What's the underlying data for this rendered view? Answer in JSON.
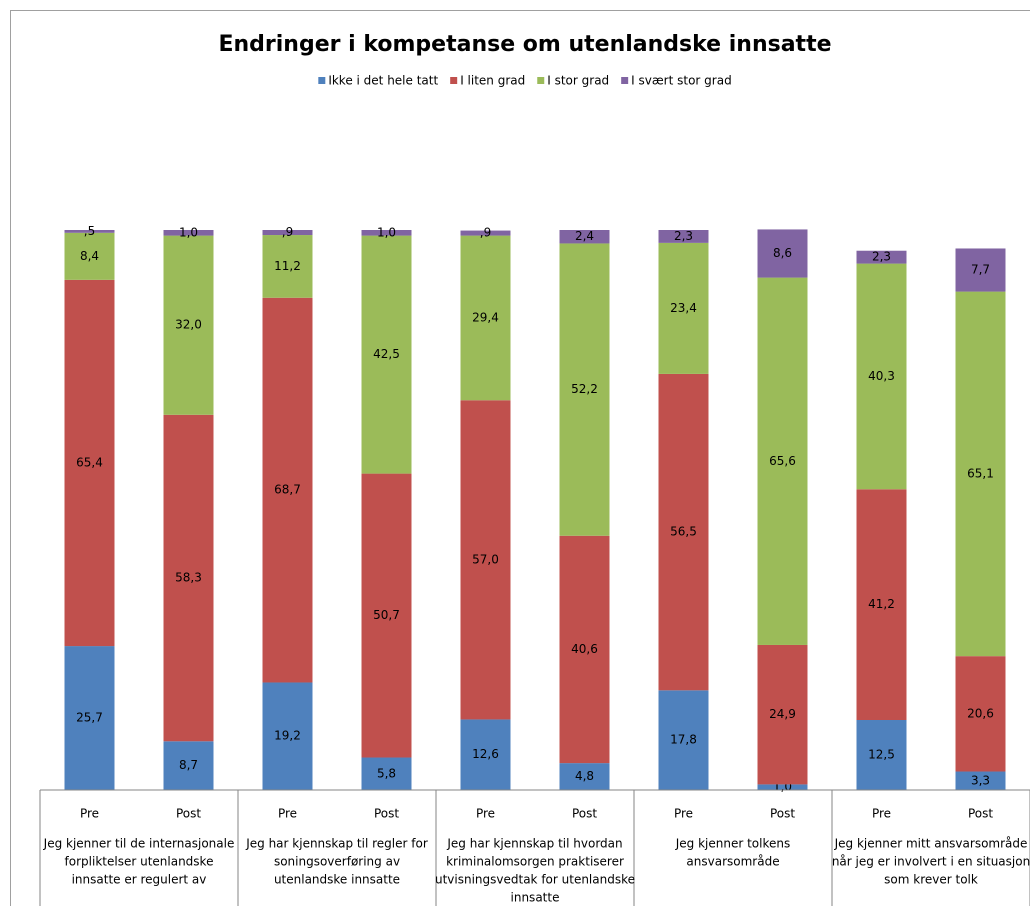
{
  "chart_data": {
    "type": "stacked_bar",
    "title": "Endringer i kompetanse om utenlandske innsatte",
    "categories": [
      "Pre",
      "Post",
      "Pre",
      "Post",
      "Pre",
      "Post",
      "Pre",
      "Post",
      "Pre",
      "Post"
    ],
    "group_labels": [
      [
        "Jeg kjenner til de internasjonale",
        "forpliktelser utenlandske",
        "innsatte er regulert av"
      ],
      [
        "Jeg har kjennskap til regler for",
        "soningsoverføring av",
        "utenlandske innsatte"
      ],
      [
        "Jeg har kjennskap til hvordan",
        "kriminalomsorgen praktiserer",
        "utvisningsvedtak for utenlandske",
        "innsatte"
      ],
      [
        "Jeg kjenner tolkens",
        "ansvarsområde"
      ],
      [
        "Jeg kjenner mitt ansvarsområde",
        "når jeg er involvert i en  situasjon",
        "som krever tolk"
      ]
    ],
    "ylim": [
      0,
      100
    ],
    "legend": "top",
    "series": [
      {
        "name": "Ikke i det hele tatt",
        "color": "#4f81bd",
        "values": [
          25.7,
          8.7,
          19.2,
          5.8,
          12.6,
          4.8,
          17.8,
          1.0,
          12.5,
          3.3
        ],
        "value_labels": [
          "25,7",
          "8,7",
          "19,2",
          "5,8",
          "12,6",
          "4,8",
          "17,8",
          "1,0",
          "12,5",
          "3,3"
        ]
      },
      {
        "name": "I liten grad",
        "color": "#c0504d",
        "values": [
          65.4,
          58.3,
          68.7,
          50.7,
          57.0,
          40.6,
          56.5,
          24.9,
          41.2,
          20.6
        ],
        "value_labels": [
          "65,4",
          "58,3",
          "68,7",
          "50,7",
          "57,0",
          "40,6",
          "56,5",
          "24,9",
          "41,2",
          "20,6"
        ]
      },
      {
        "name": "I stor grad",
        "color": "#9bbb59",
        "values": [
          8.4,
          32.0,
          11.2,
          42.5,
          29.4,
          52.2,
          23.4,
          65.6,
          40.3,
          65.1
        ],
        "value_labels": [
          "8,4",
          "32,0",
          "11,2",
          "42,5",
          "29,4",
          "52,2",
          "23,4",
          "65,6",
          "40,3",
          "65,1"
        ]
      },
      {
        "name": "I svært stor grad",
        "color": "#8064a2",
        "values": [
          0.5,
          1.0,
          0.9,
          1.0,
          0.9,
          2.4,
          2.3,
          8.6,
          2.3,
          7.7
        ],
        "value_labels": [
          ",5",
          "1,0",
          ",9",
          "1,0",
          ",9",
          "2,4",
          "2,3",
          "8,6",
          "2,3",
          "7,7"
        ]
      }
    ]
  }
}
